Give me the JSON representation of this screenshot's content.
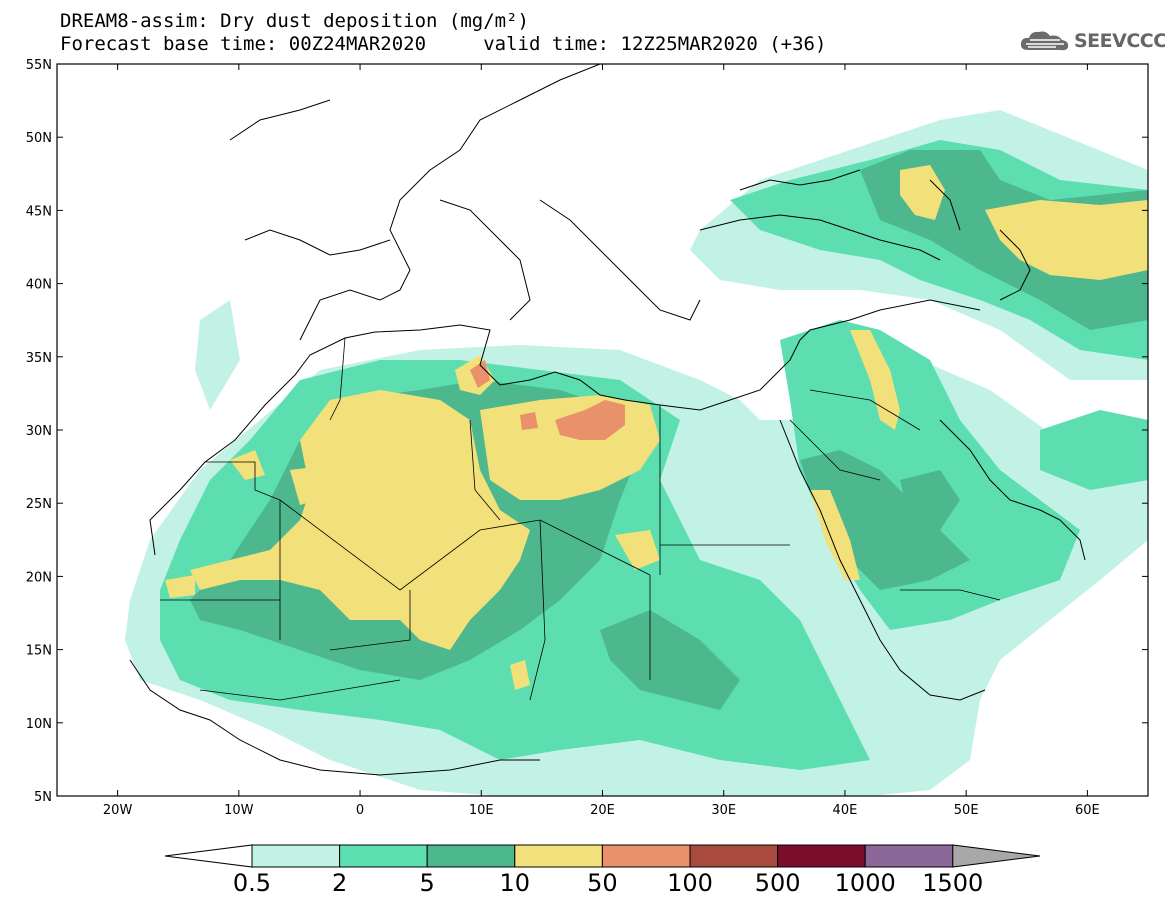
{
  "title": {
    "line1": "DREAM8-assim: Dry dust deposition (mg/m²)",
    "line2": "Forecast base time: 00Z24MAR2020     valid time: 12Z25MAR2020 (+36)"
  },
  "logo": {
    "text": "SEEVCCC",
    "icon": "cloud-icon"
  },
  "map": {
    "lon_range": [
      -25,
      65
    ],
    "lat_range": [
      5,
      55
    ],
    "lat_ticks": [
      "5N",
      "10N",
      "15N",
      "20N",
      "25N",
      "30N",
      "35N",
      "40N",
      "45N",
      "50N",
      "55N"
    ],
    "lon_ticks": [
      "20W",
      "10W",
      "0",
      "10E",
      "20E",
      "30E",
      "40E",
      "50E",
      "60E"
    ]
  },
  "colorbar": {
    "labels": [
      "0.5",
      "2",
      "5",
      "10",
      "50",
      "100",
      "500",
      "1000",
      "1500"
    ],
    "colors": [
      "#c2f2e6",
      "#5cdeb0",
      "#4db78e",
      "#f2e07a",
      "#e8916a",
      "#a84a3e",
      "#7a0e2a",
      "#8c6898",
      "#a8a8a8"
    ]
  }
}
